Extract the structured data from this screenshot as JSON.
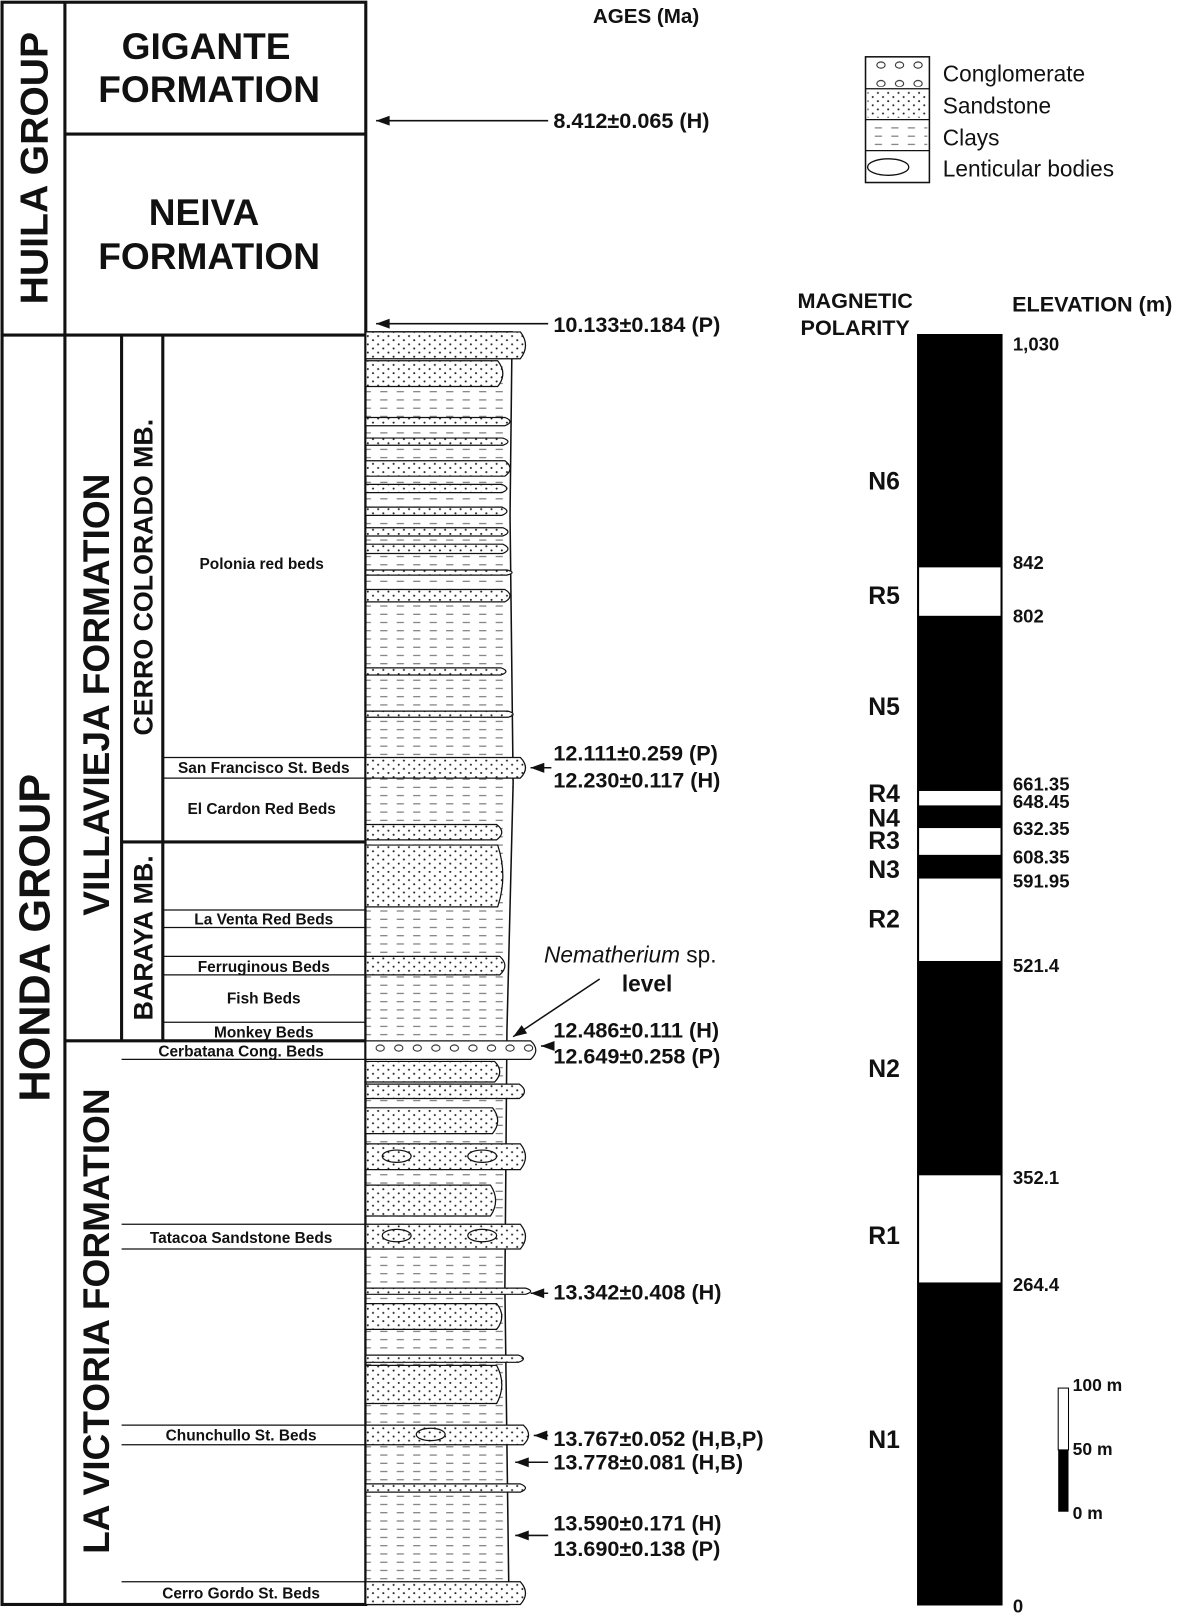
{
  "header": {
    "ages_title": "AGES (Ma)",
    "polarity_title": [
      "MAGNETIC",
      "POLARITY"
    ],
    "elevation_title": "ELEVATION (m)"
  },
  "groups": [
    "HUILA GROUP",
    "HONDA GROUP"
  ],
  "formations": {
    "gigante": [
      "GIGANTE",
      "FORMATION"
    ],
    "neiva": [
      "NEIVA",
      "FORMATION"
    ],
    "villavieja": "VILLAVIEJA FORMATION",
    "la_victoria": "LA VICTORIA FORMATION"
  },
  "members": [
    "CERRO COLORADO MB.",
    "BARAYA MB."
  ],
  "beds": [
    "Polonia red beds",
    "San Francisco St. Beds",
    "El Cardon Red Beds",
    "La Venta Red Beds",
    "Ferruginous Beds",
    "Fish Beds",
    "Monkey Beds",
    "Cerbatana Cong. Beds",
    "Tatacoa Sandstone Beds",
    "Chunchullo St. Beds",
    "Cerro Gordo St. Beds"
  ],
  "ages": [
    "8.412±0.065 (H)",
    "10.133±0.184 (P)",
    "12.111±0.259 (P)",
    "12.230±0.117 (H)",
    "12.486±0.111 (H)",
    "12.649±0.258 (P)",
    "13.342±0.408 (H)",
    "13.767±0.052 (H,B,P)",
    "13.778±0.081 (H,B)",
    "13.590±0.171 (H)",
    "13.690±0.138 (P)"
  ],
  "legend": [
    "Conglomerate",
    "Sandstone",
    "Clays",
    "Lenticular bodies"
  ],
  "annotation": {
    "species": "Nematherium",
    "rest": " sp.",
    "line2": "level"
  },
  "polarity": [
    "N6",
    "R5",
    "N5",
    "R4",
    "N4",
    "R3",
    "N3",
    "R2",
    "N2",
    "R1",
    "N1"
  ],
  "elevations": [
    "1,030",
    "842",
    "802",
    "661.35",
    "648.45",
    "632.35",
    "608.35",
    "591.95",
    "521.4",
    "352.1",
    "264.4",
    "0"
  ],
  "scale_bar": [
    "100 m",
    "50 m",
    "0 m"
  ]
}
